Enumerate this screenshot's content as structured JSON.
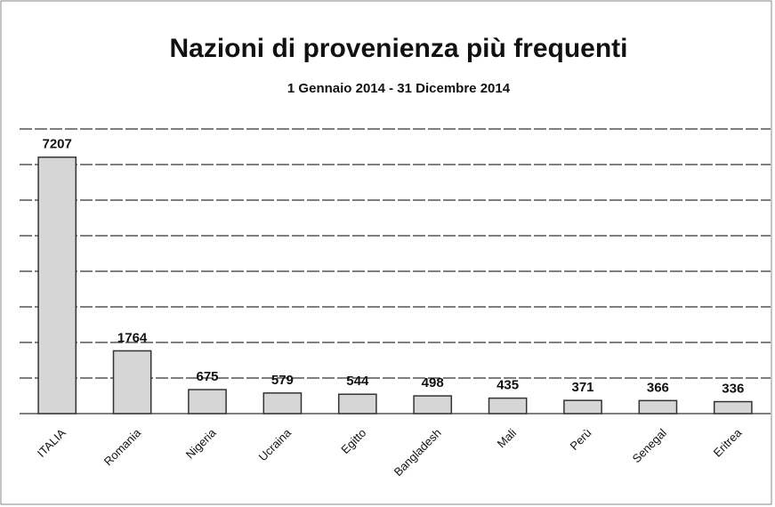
{
  "chart_data": {
    "type": "bar",
    "title": "Nazioni di provenienza più frequenti",
    "subtitle": "1 Gennaio 2014 - 31 Dicembre 2014",
    "categories": [
      "ITALIA",
      "Romania",
      "Nigeria",
      "Ucraina",
      "Egitto",
      "Bangladesh",
      "Mali",
      "Perù",
      "Senegal",
      "Eritrea"
    ],
    "values": [
      7207,
      1764,
      675,
      579,
      544,
      498,
      435,
      371,
      366,
      336
    ],
    "color": "#d6d6d6",
    "ylim": [
      0,
      8000
    ],
    "yticks": [
      0,
      1000,
      2000,
      3000,
      4000,
      5000,
      6000,
      7000,
      8000
    ],
    "grid": true
  }
}
